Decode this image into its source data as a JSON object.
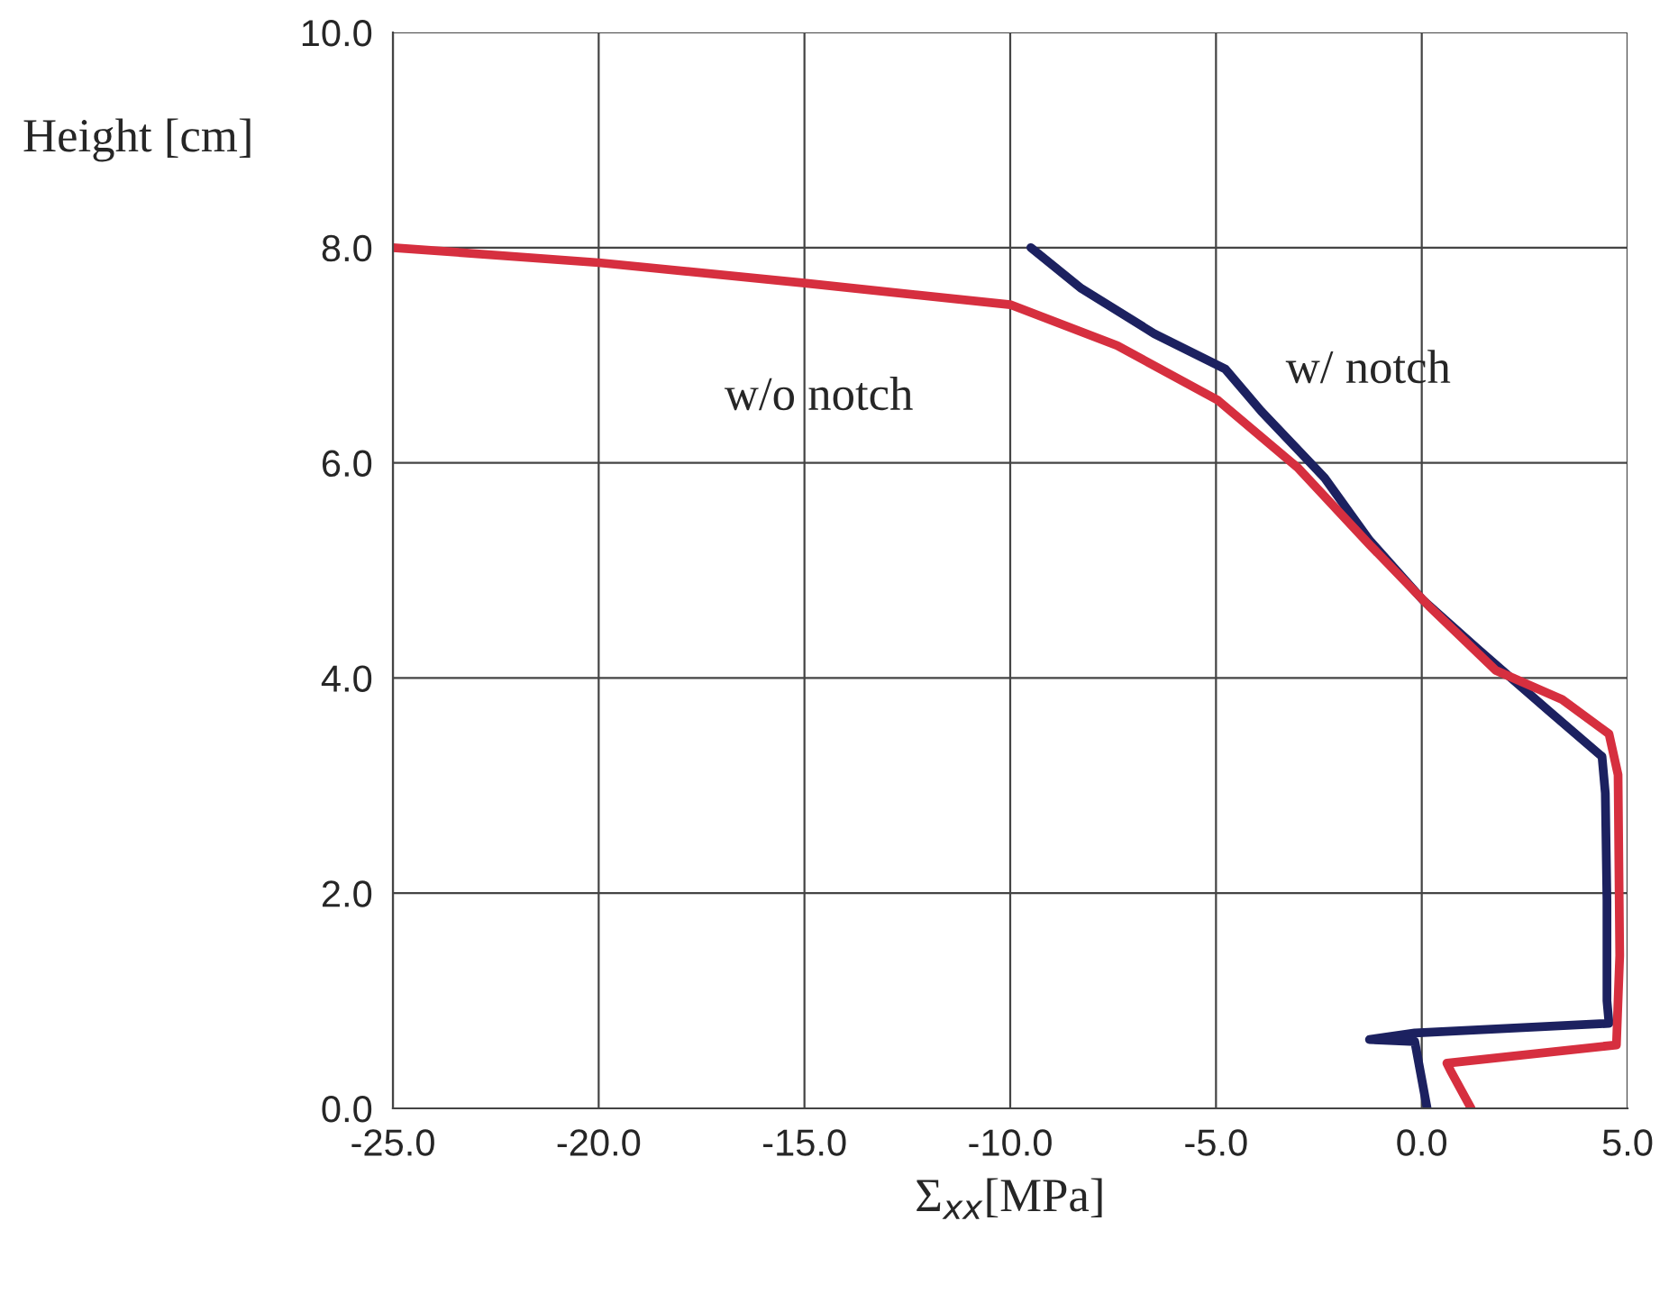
{
  "chart_data": {
    "type": "line",
    "xlabel": "Σ$_{xx}$[MPa]",
    "ylabel": "Height [cm]",
    "series": [
      {
        "color": "#1c2160",
        "x": [
          -9.5,
          -8.27,
          -6.5,
          -4.77,
          -3.9,
          -2.36,
          -1.27,
          0.04,
          1.36,
          3.1,
          4.38,
          4.46,
          4.5,
          4.5,
          4.55,
          -0.17,
          -1.27,
          -0.17,
          0.13
        ],
        "values": [
          8.0,
          7.62,
          7.2,
          6.87,
          6.48,
          5.86,
          5.28,
          4.72,
          4.27,
          3.69,
          3.27,
          2.93,
          1.93,
          1.0,
          0.79,
          0.7,
          0.64,
          0.62,
          0.0
        ]
      },
      {
        "color": "#d62f3f",
        "x": [
          -25.0,
          -20.0,
          -15.0,
          -10.0,
          -7.4,
          -4.95,
          -3.0,
          -1.27,
          0.17,
          1.8,
          3.41,
          4.55,
          4.77,
          4.81,
          4.73,
          0.61,
          0.7,
          1.2
        ],
        "values": [
          8.0,
          7.86,
          7.67,
          7.47,
          7.09,
          6.58,
          5.95,
          5.24,
          4.67,
          4.07,
          3.8,
          3.48,
          3.1,
          1.42,
          0.59,
          0.42,
          0.35,
          0.0
        ]
      }
    ],
    "annotations": [
      "w/o notch",
      "w/ notch"
    ],
    "xlim": [
      -25.0,
      5.0
    ],
    "ylim": [
      0.0,
      10.0
    ],
    "xticks": [
      {
        "value": -25,
        "label": "-25.0"
      },
      {
        "value": -20,
        "label": "-20.0"
      },
      {
        "value": -15,
        "label": "-15.0"
      },
      {
        "value": -10,
        "label": "-10.0"
      },
      {
        "value": -5,
        "label": "-5.0"
      },
      {
        "value": 0,
        "label": "0.0"
      },
      {
        "value": 5,
        "label": "5.0"
      }
    ],
    "yticks": [
      {
        "value": 0,
        "label": "0.0"
      },
      {
        "value": 2,
        "label": "2.0"
      },
      {
        "value": 4,
        "label": "4.0"
      },
      {
        "value": 6,
        "label": "6.0"
      },
      {
        "value": 8,
        "label": "8.0"
      },
      {
        "value": 10,
        "label": "10.0"
      }
    ],
    "grid": true,
    "legend": false,
    "marker": "none",
    "line_style": "solid"
  }
}
